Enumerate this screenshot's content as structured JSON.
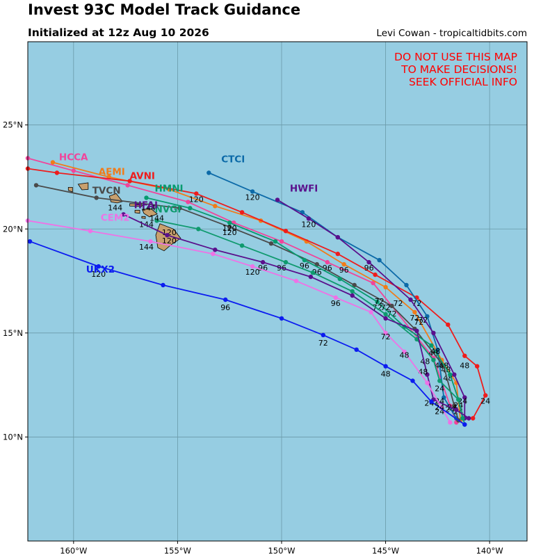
{
  "header": {
    "title": "Invest 93C Model Track Guidance",
    "subtitle": "Initialized at 12z Aug 10 2026",
    "credit": "Levi Cowan - tropicaltidbits.com"
  },
  "warning": [
    "DO NOT USE THIS MAP",
    "TO MAKE DECISIONS!",
    "SEEK OFFICIAL INFO"
  ],
  "colors": {
    "ocean": "#96cde2",
    "land": "#c8a06e",
    "grid": "#6a9aa8",
    "warning": "#ff0000"
  },
  "map": {
    "lon_range": [
      -162.2,
      -138.2
    ],
    "lat_range": [
      5,
      29
    ],
    "lon_ticks": [
      -160,
      -155,
      -150,
      -145,
      -140
    ],
    "lon_tick_labels": [
      "160°W",
      "155°W",
      "150°W",
      "145°W",
      "140°W"
    ],
    "lat_ticks": [
      10,
      15,
      20,
      25
    ],
    "lat_tick_labels": [
      "10°N",
      "15°N",
      "20°N",
      "25°N"
    ]
  },
  "models": [
    {
      "name": "HCCA",
      "color": "#f0459b",
      "label_at": [
        -160.7,
        23.3
      ],
      "track": [
        [
          -141.6,
          10.7
        ],
        [
          -141.9,
          11.5
        ],
        [
          -142.7,
          13.8
        ],
        [
          -144.7,
          16.3
        ],
        [
          -145.6,
          17.4
        ],
        [
          -147.8,
          18.4
        ],
        [
          -150.0,
          19.4
        ],
        [
          -152.3,
          20.3
        ],
        [
          -154.5,
          21.3
        ],
        [
          -157.4,
          22.1
        ],
        [
          -160.0,
          22.8
        ],
        [
          -162.2,
          23.4
        ]
      ],
      "labels": [
        [
          "24",
          -141.9,
          11.2
        ],
        [
          "48",
          -142.4,
          13.3
        ],
        [
          "72",
          -144.7,
          15.8
        ],
        [
          "96",
          -147.8,
          18.0
        ]
      ]
    },
    {
      "name": "AEMI",
      "color": "#f07c1a",
      "label_at": [
        -158.8,
        22.6
      ],
      "track": [
        [
          -141.4,
          10.8
        ],
        [
          -141.6,
          12.6
        ],
        [
          -142.3,
          13.7
        ],
        [
          -143.6,
          16.0
        ],
        [
          -145.0,
          17.2
        ],
        [
          -147.0,
          18.3
        ],
        [
          -148.8,
          19.4
        ],
        [
          -151.0,
          20.4
        ],
        [
          -153.2,
          21.1
        ],
        [
          -155.4,
          21.9
        ],
        [
          -158.3,
          22.5
        ],
        [
          -161.0,
          23.2
        ]
      ],
      "labels": [
        [
          "24",
          -141.5,
          11.1
        ],
        [
          "48",
          -142.1,
          13.1
        ],
        [
          "72",
          -143.4,
          15.4
        ],
        [
          "96",
          -147.0,
          17.9
        ]
      ]
    },
    {
      "name": "AVNI",
      "color": "#ee1c1c",
      "label_at": [
        -157.3,
        22.4
      ],
      "track": [
        [
          -140.8,
          10.9
        ],
        [
          -140.2,
          12.0
        ],
        [
          -140.6,
          13.4
        ],
        [
          -141.2,
          13.9
        ],
        [
          -142.0,
          15.4
        ],
        [
          -143.5,
          16.7
        ],
        [
          -145.5,
          17.8
        ],
        [
          -147.3,
          18.8
        ],
        [
          -149.8,
          19.9
        ],
        [
          -151.9,
          20.8
        ],
        [
          -154.1,
          21.7
        ],
        [
          -157.3,
          22.3
        ],
        [
          -160.8,
          22.7
        ],
        [
          -162.2,
          22.9
        ]
      ],
      "labels": [
        [
          "24",
          -140.2,
          11.6
        ],
        [
          "48",
          -141.2,
          13.3
        ],
        [
          "72",
          -143.5,
          16.3
        ],
        [
          "120",
          -154.1,
          21.3
        ]
      ]
    },
    {
      "name": "CTCI",
      "color": "#0c6aa8",
      "label_at": [
        -152.9,
        23.2
      ],
      "track": [
        [
          -141.6,
          10.9
        ],
        [
          -142.2,
          11.9
        ],
        [
          -142.5,
          14.2
        ],
        [
          -143.0,
          15.8
        ],
        [
          -144.0,
          17.3
        ],
        [
          -145.3,
          18.5
        ],
        [
          -147.3,
          19.6
        ],
        [
          -149.0,
          20.8
        ],
        [
          -151.4,
          21.8
        ],
        [
          -153.5,
          22.7
        ]
      ],
      "labels": [
        [
          "24",
          -142.4,
          11.6
        ],
        [
          "48",
          -142.7,
          13.9
        ],
        [
          "72",
          -143.2,
          15.5
        ],
        [
          "120",
          -151.4,
          21.4
        ]
      ]
    },
    {
      "name": "HWFI",
      "color": "#5a108c",
      "label_at": [
        -149.6,
        21.8
      ],
      "track": [
        [
          -141.2,
          10.9
        ],
        [
          -141.2,
          11.9
        ],
        [
          -141.7,
          13.0
        ],
        [
          -142.7,
          15.0
        ],
        [
          -143.8,
          16.6
        ],
        [
          -145.8,
          18.4
        ],
        [
          -147.3,
          19.6
        ],
        [
          -148.7,
          20.5
        ],
        [
          -150.2,
          21.4
        ]
      ],
      "labels": [
        [
          "24",
          -141.3,
          11.6
        ],
        [
          "48",
          -142.0,
          12.7
        ],
        [
          "72",
          -144.4,
          16.3
        ],
        [
          "96",
          -145.8,
          18.0
        ],
        [
          "120",
          -148.7,
          20.1
        ]
      ]
    },
    {
      "name": "TVCN",
      "color": "#4a4a4a",
      "label_at": [
        -159.1,
        21.7
      ],
      "track": [
        [
          -141.5,
          10.8
        ],
        [
          -141.7,
          11.5
        ],
        [
          -142.2,
          13.4
        ],
        [
          -143.6,
          15.2
        ],
        [
          -144.7,
          16.3
        ],
        [
          -146.5,
          17.3
        ],
        [
          -148.3,
          18.3
        ],
        [
          -150.5,
          19.3
        ],
        [
          -152.5,
          20.1
        ],
        [
          -154.9,
          21.0
        ],
        [
          -158.9,
          21.5
        ],
        [
          -161.8,
          22.1
        ]
      ],
      "labels": [
        [
          "24",
          -141.8,
          11.3
        ],
        [
          "48",
          -142.2,
          13.3
        ],
        [
          "72",
          -143.6,
          15.6
        ],
        [
          "96",
          -148.3,
          17.8
        ],
        [
          "120",
          -152.5,
          19.7
        ],
        [
          "144",
          -158.0,
          20.9
        ]
      ]
    },
    {
      "name": "HMNI",
      "color": "#079a6e",
      "label_at": [
        -156.1,
        21.8
      ],
      "track": [
        [
          -141.3,
          10.9
        ],
        [
          -141.5,
          11.8
        ],
        [
          -141.9,
          13.0
        ],
        [
          -142.8,
          14.4
        ],
        [
          -144.1,
          15.3
        ],
        [
          -145.4,
          16.5
        ],
        [
          -147.2,
          17.6
        ],
        [
          -148.9,
          18.5
        ],
        [
          -150.3,
          19.4
        ],
        [
          -152.5,
          20.3
        ],
        [
          -154.4,
          21.0
        ],
        [
          -156.5,
          21.5
        ]
      ],
      "labels": [
        [
          "24",
          -141.5,
          11.4
        ],
        [
          "48",
          -142.6,
          14.0
        ],
        [
          "72",
          -145.4,
          16.1
        ],
        [
          "96",
          -148.9,
          18.1
        ],
        [
          "120",
          -152.5,
          19.9
        ],
        [
          "144",
          -156.4,
          20.9
        ]
      ]
    },
    {
      "name": "NVGI",
      "color": "#0f9a6e",
      "label_at": [
        -156.1,
        20.8
      ],
      "track": [
        [
          -141.2,
          10.6
        ],
        [
          -141.5,
          11.8
        ],
        [
          -142.4,
          12.7
        ],
        [
          -142.7,
          13.7
        ],
        [
          -143.5,
          14.7
        ],
        [
          -145.0,
          15.9
        ],
        [
          -146.6,
          17.0
        ],
        [
          -148.5,
          17.9
        ],
        [
          -149.8,
          18.4
        ],
        [
          -151.9,
          19.2
        ],
        [
          -154.0,
          20.0
        ],
        [
          -156.0,
          20.4
        ]
      ],
      "labels": [
        [
          "24",
          -142.4,
          12.2
        ],
        [
          "48",
          -143.1,
          13.5
        ],
        [
          "72",
          -145.3,
          16.4
        ],
        [
          "96",
          -150.0,
          18.0
        ],
        [
          "120",
          -155.4,
          19.7
        ],
        [
          "144",
          -156.5,
          20.1
        ]
      ]
    },
    {
      "name": "HFAI",
      "color": "#5a108c",
      "label_at": [
        -157.1,
        21.0
      ],
      "track": [
        [
          -141.0,
          10.9
        ],
        [
          -141.6,
          11.3
        ],
        [
          -142.7,
          11.8
        ],
        [
          -143.0,
          13.0
        ],
        [
          -143.5,
          15.1
        ],
        [
          -145.0,
          15.7
        ],
        [
          -146.6,
          16.8
        ],
        [
          -148.6,
          17.7
        ],
        [
          -150.9,
          18.4
        ],
        [
          -153.2,
          19.0
        ],
        [
          -155.5,
          19.7
        ],
        [
          -157.6,
          20.7
        ]
      ],
      "labels": [
        [
          "24",
          -142.9,
          11.5
        ],
        [
          "48",
          -143.2,
          13.0
        ],
        [
          "72",
          -145.0,
          16.1
        ],
        [
          "96",
          -150.9,
          18.0
        ],
        [
          "120",
          -155.4,
          19.3
        ],
        [
          "144",
          -156.0,
          20.4
        ]
      ]
    },
    {
      "name": "CEM2",
      "color": "#ee72e6",
      "label_at": [
        -158.7,
        20.4
      ],
      "track": [
        [
          -141.9,
          10.7
        ],
        [
          -142.3,
          11.4
        ],
        [
          -143.0,
          12.6
        ],
        [
          -144.1,
          14.1
        ],
        [
          -145.0,
          15.0
        ],
        [
          -145.7,
          16.0
        ],
        [
          -147.4,
          16.7
        ],
        [
          -149.3,
          17.5
        ],
        [
          -151.4,
          18.2
        ],
        [
          -153.3,
          18.8
        ],
        [
          -156.3,
          19.4
        ],
        [
          -159.2,
          19.9
        ],
        [
          -162.2,
          20.4
        ]
      ],
      "labels": [
        [
          "24",
          -142.4,
          11.1
        ],
        [
          "48",
          -144.1,
          13.8
        ],
        [
          "72",
          -145.0,
          14.7
        ],
        [
          "96",
          -147.4,
          16.3
        ],
        [
          "120",
          -151.4,
          17.8
        ],
        [
          "144",
          -156.5,
          19.0
        ]
      ]
    },
    {
      "name": "UKX2",
      "color": "#0c1cf0",
      "label_at": [
        -159.4,
        17.9
      ],
      "track": [
        [
          -141.2,
          10.6
        ],
        [
          -142.8,
          11.7
        ],
        [
          -143.7,
          12.7
        ],
        [
          -145.0,
          13.4
        ],
        [
          -146.4,
          14.2
        ],
        [
          -148.0,
          14.9
        ],
        [
          -150.0,
          15.7
        ],
        [
          -152.7,
          16.6
        ],
        [
          -155.7,
          17.3
        ],
        [
          -158.8,
          18.2
        ],
        [
          -162.1,
          19.4
        ]
      ],
      "labels": [
        [
          "24",
          -142.4,
          11.3
        ],
        [
          "48",
          -145.0,
          12.9
        ],
        [
          "72",
          -148.0,
          14.4
        ],
        [
          "96",
          -152.7,
          16.1
        ],
        [
          "120",
          -158.8,
          17.7
        ]
      ]
    }
  ]
}
